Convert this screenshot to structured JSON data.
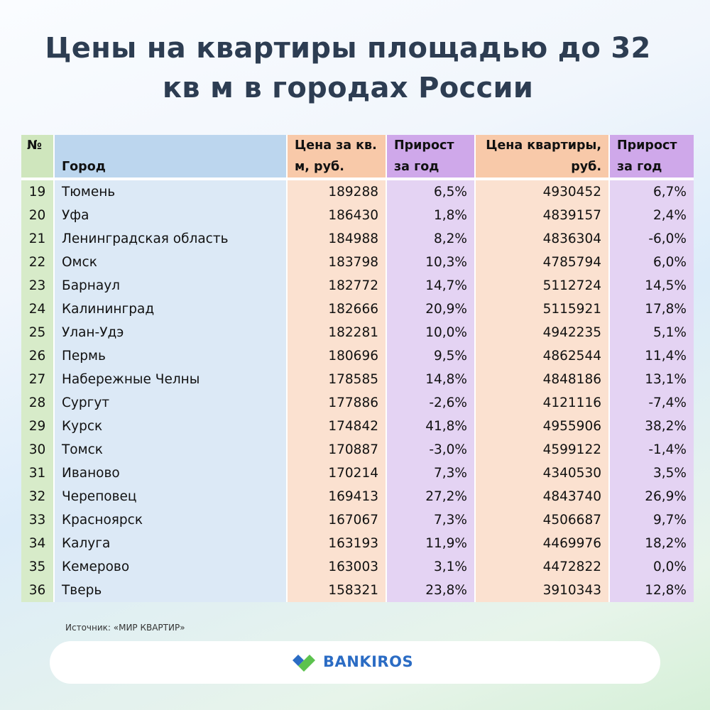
{
  "header": {
    "title": "Цены на квартиры площадью до 32 кв м в городах России"
  },
  "table": {
    "columns": [
      "№",
      "Город",
      "Цена за кв. м, руб.",
      "Прирост за год",
      "Цена квартиры, руб.",
      "Прирост за год"
    ],
    "rows": [
      [
        "19",
        "Тюмень",
        "189288",
        "6,5%",
        "4930452",
        "6,7%"
      ],
      [
        "20",
        "Уфа",
        "186430",
        "1,8%",
        "4839157",
        "2,4%"
      ],
      [
        "21",
        "Ленинградская область",
        "184988",
        "8,2%",
        "4836304",
        "-6,0%"
      ],
      [
        "22",
        "Омск",
        "183798",
        "10,3%",
        "4785794",
        "6,0%"
      ],
      [
        "23",
        "Барнаул",
        "182772",
        "14,7%",
        "5112724",
        "14,5%"
      ],
      [
        "24",
        "Калининград",
        "182666",
        "20,9%",
        "5115921",
        "17,8%"
      ],
      [
        "25",
        "Улан-Удэ",
        "182281",
        "10,0%",
        "4942235",
        "5,1%"
      ],
      [
        "26",
        "Пермь",
        "180696",
        "9,5%",
        "4862544",
        "11,4%"
      ],
      [
        "27",
        "Набережные Челны",
        "178585",
        "14,8%",
        "4848186",
        "13,1%"
      ],
      [
        "28",
        "Сургут",
        "177886",
        "-2,6%",
        "4121116",
        "-7,4%"
      ],
      [
        "29",
        "Курск",
        "174842",
        "41,8%",
        "4955906",
        "38,2%"
      ],
      [
        "30",
        "Томск",
        "170887",
        "-3,0%",
        "4599122",
        "-1,4%"
      ],
      [
        "31",
        "Иваново",
        "170214",
        "7,3%",
        "4340530",
        "3,5%"
      ],
      [
        "32",
        "Череповец",
        "169413",
        "27,2%",
        "4843740",
        "26,9%"
      ],
      [
        "33",
        "Красноярск",
        "167067",
        "7,3%",
        "4506687",
        "9,7%"
      ],
      [
        "34",
        "Калуга",
        "163193",
        "11,9%",
        "4469976",
        "18,2%"
      ],
      [
        "35",
        "Кемерово",
        "163003",
        "3,1%",
        "4472822",
        "0,0%"
      ],
      [
        "36",
        "Тверь",
        "158321",
        "23,8%",
        "3910343",
        "12,8%"
      ]
    ]
  },
  "footer": {
    "source": "Источник: «МИР КВАРТИР»",
    "brand": "BANKIROS"
  }
}
